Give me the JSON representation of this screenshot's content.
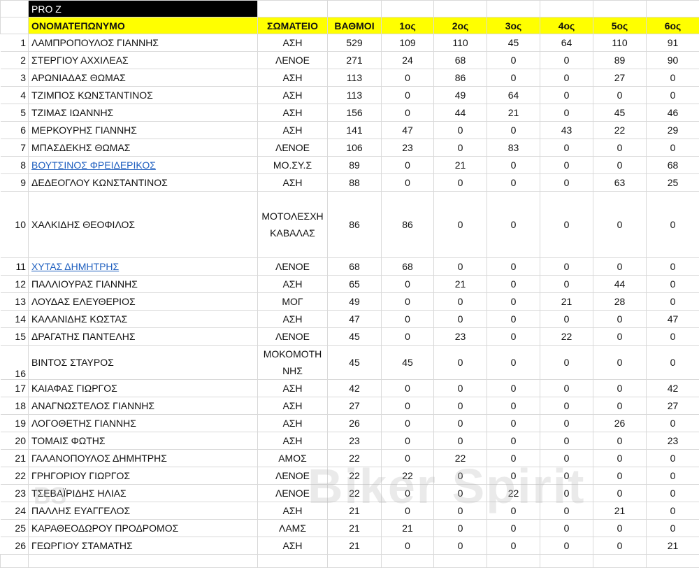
{
  "sheet": {
    "title": "PRO Z",
    "headers": {
      "name": "ΟΝΟΜΑΤΕΠΩΝΥΜΟ",
      "club": "ΣΩΜΑΤΕΙΟ",
      "points": "ΒΑΘΜΟΙ",
      "races": [
        "1ος",
        "2ος",
        "3ος",
        "4ος",
        "5ος",
        "6ος"
      ]
    },
    "colors": {
      "title_bg": "#000000",
      "header_bg": "#ffff00",
      "link": "#1f5fbf"
    },
    "rows": [
      {
        "pos": "1",
        "name": "ΛΑΜΠΡΟΠΟΥΛΟΣ ΓΙΑΝΝΗΣ",
        "club": "ΑΣΗ",
        "points": "529",
        "races": [
          "109",
          "110",
          "45",
          "64",
          "110",
          "91"
        ]
      },
      {
        "pos": "2",
        "name": "ΣΤΕΡΓΙΟΥ ΑΧΧΙΛΕΑΣ",
        "club": "ΛΕΝΟΕ",
        "points": "271",
        "races": [
          "24",
          "68",
          "0",
          "0",
          "89",
          "90"
        ]
      },
      {
        "pos": "3",
        "name": "ΑΡΩΝΙΑΔΑΣ ΘΩΜΑΣ",
        "club": "ΑΣΗ",
        "points": "113",
        "races": [
          "0",
          "86",
          "0",
          "0",
          "27",
          "0"
        ]
      },
      {
        "pos": "4",
        "name": "ΤΖΙΜΠΟΣ ΚΩΝΣΤΑΝΤΙΝΟΣ",
        "club": "ΑΣΗ",
        "points": "113",
        "races": [
          "0",
          "49",
          "64",
          "0",
          "0",
          "0"
        ]
      },
      {
        "pos": "5",
        "name": "ΤΖΙΜΑΣ ΙΩΑΝΝΗΣ",
        "club": "ΑΣΗ",
        "points": "156",
        "races": [
          "0",
          "44",
          "21",
          "0",
          "45",
          "46"
        ]
      },
      {
        "pos": "6",
        "name": "ΜΕΡΚΟΥΡΗΣ ΓΙΑΝΝΗΣ",
        "club": "ΑΣΗ",
        "points": "141",
        "races": [
          "47",
          "0",
          "0",
          "43",
          "22",
          "29"
        ]
      },
      {
        "pos": "7",
        "name": "ΜΠΑΣΔΕΚΗΣ ΘΩΜΑΣ",
        "club": "ΛΕΝΟΕ",
        "points": "106",
        "races": [
          "23",
          "0",
          "83",
          "0",
          "0",
          "0"
        ]
      },
      {
        "pos": "8",
        "name": "ΒΟΥΤΣΙΝΟΣ ΦΡΕΙΔΕΡΙΚΟΣ",
        "club": "ΜΟ.ΣΥ.Σ",
        "points": "89",
        "races": [
          "0",
          "21",
          "0",
          "0",
          "0",
          "68"
        ],
        "link": true
      },
      {
        "pos": "9",
        "name": "ΔΕΔΕΟΓΛΟΥ ΚΩΝΣΤΑΝΤΙΝΟΣ",
        "club": "ΑΣΗ",
        "points": "88",
        "races": [
          "0",
          "0",
          "0",
          "0",
          "63",
          "25"
        ]
      },
      {
        "pos": "10",
        "name": "ΧΑΛΚΙΔΗΣ ΘΕΟΦΙΛΟΣ",
        "club": "ΜΟΤΟΛΕΣΧΗ ΚΑΒΑΛΑΣ",
        "points": "86",
        "races": [
          "86",
          "0",
          "0",
          "0",
          "0",
          "0"
        ]
      },
      {
        "pos": "11",
        "name": "ΧΥΤΑΣ ΔΗΜΗΤΡΗΣ",
        "club": "ΛΕΝΟΕ",
        "points": "68",
        "races": [
          "68",
          "0",
          "0",
          "0",
          "0",
          "0"
        ],
        "link": true
      },
      {
        "pos": "12",
        "name": "ΠΑΛΛΙΟΥΡΑΣ ΓΙΑΝΝΗΣ",
        "club": "ΑΣΗ",
        "points": "65",
        "races": [
          "0",
          "21",
          "0",
          "0",
          "44",
          "0"
        ]
      },
      {
        "pos": "13",
        "name": "ΛΟΥΔΑΣ ΕΛΕΥΘΕΡΙΟΣ",
        "club": "ΜΟΓ",
        "points": "49",
        "races": [
          "0",
          "0",
          "0",
          "21",
          "28",
          "0"
        ]
      },
      {
        "pos": "14",
        "name": "ΚΑΛΑΝΙΔΗΣ ΚΩΣΤΑΣ",
        "club": "ΑΣΗ",
        "points": "47",
        "races": [
          "0",
          "0",
          "0",
          "0",
          "0",
          "47"
        ]
      },
      {
        "pos": "15",
        "name": "ΔΡΑΓΑΤΗΣ ΠΑΝΤΕΛΗΣ",
        "club": "ΛΕΝΟΕ",
        "points": "45",
        "races": [
          "0",
          "23",
          "0",
          "22",
          "0",
          "0"
        ]
      },
      {
        "pos": "16",
        "name": "ΒΙΝΤΟΣ ΣΤΑΥΡΟΣ",
        "club": "ΜΟΚΟΜΟΤΗΝΗΣ",
        "points": "45",
        "races": [
          "45",
          "0",
          "0",
          "0",
          "0",
          "0"
        ]
      },
      {
        "pos": "17",
        "name": "ΚΑΙΑΦΑΣ ΓΙΩΡΓΟΣ",
        "club": "ΑΣΗ",
        "points": "42",
        "races": [
          "0",
          "0",
          "0",
          "0",
          "0",
          "42"
        ]
      },
      {
        "pos": "18",
        "name": "ΑΝΑΓΝΩΣΤΕΛΟΣ ΓΙΑΝΝΗΣ",
        "club": "ΑΣΗ",
        "points": "27",
        "races": [
          "0",
          "0",
          "0",
          "0",
          "0",
          "27"
        ]
      },
      {
        "pos": "19",
        "name": "ΛΟΓΟΘΕΤΗΣ ΓΙΑΝΝΗΣ",
        "club": "ΑΣΗ",
        "points": "26",
        "races": [
          "0",
          "0",
          "0",
          "0",
          "26",
          "0"
        ]
      },
      {
        "pos": "20",
        "name": "ΤΟΜΑΙΣ ΦΩΤΗΣ",
        "club": "ΑΣΗ",
        "points": "23",
        "races": [
          "0",
          "0",
          "0",
          "0",
          "0",
          "23"
        ]
      },
      {
        "pos": "21",
        "name": "ΓΑΛΑΝΟΠΟΥΛΟΣ ΔΗΜΗΤΡΗΣ",
        "club": "ΑΜΟΣ",
        "points": "22",
        "races": [
          "0",
          "22",
          "0",
          "0",
          "0",
          "0"
        ]
      },
      {
        "pos": "22",
        "name": "ΓΡΗΓΟΡΙΟΥ ΓΙΩΡΓΟΣ",
        "club": "ΛΕΝΟΕ",
        "points": "22",
        "races": [
          "22",
          "0",
          "0",
          "0",
          "0",
          "0"
        ]
      },
      {
        "pos": "23",
        "name": "ΤΣΕΒΑΪΡΙΔΗΣ ΗΛΙΑΣ",
        "club": "ΛΕΝΟΕ",
        "points": "22",
        "races": [
          "0",
          "0",
          "22",
          "0",
          "0",
          "0"
        ]
      },
      {
        "pos": "24",
        "name": "ΠΑΛΛΗΣ ΕΥΑΓΓΕΛΟΣ",
        "club": "ΑΣΗ",
        "points": "21",
        "races": [
          "0",
          "0",
          "0",
          "0",
          "21",
          "0"
        ]
      },
      {
        "pos": "25",
        "name": "ΚΑΡΑΘΕΟΔΩΡΟΥ ΠΡΟΔΡΟΜΟΣ",
        "club": "ΛΑΜΣ",
        "points": "21",
        "races": [
          "21",
          "0",
          "0",
          "0",
          "0",
          "0"
        ]
      },
      {
        "pos": "26",
        "name": "ΓΕΩΡΓΙΟΥ ΣΤΑΜΑΤΗΣ",
        "club": "ΑΣΗ",
        "points": "21",
        "races": [
          "0",
          "0",
          "0",
          "0",
          "0",
          "21"
        ]
      }
    ]
  },
  "watermark": {
    "text": "Biker Spirit",
    "logo": "BS"
  }
}
